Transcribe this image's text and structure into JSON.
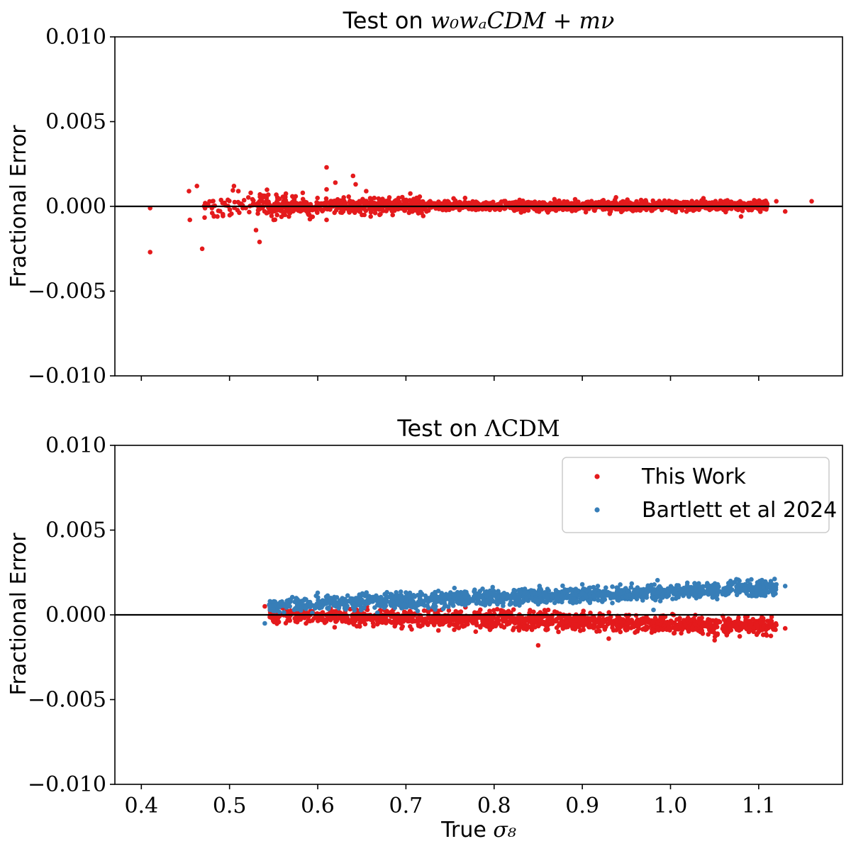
{
  "colors": {
    "red": "#e41a1c",
    "blue": "#377eb8",
    "zero_line": "#000000"
  },
  "chart_data": [
    {
      "type": "scatter",
      "title": "Test on w0waCDM + mν",
      "title_prefix": "Test on ",
      "title_math": "w₀wₐCDM + mν",
      "ylabel": "Fractional Error",
      "xlabel": "",
      "xlim": [
        0.37,
        1.195
      ],
      "ylim": [
        -0.01,
        0.01
      ],
      "yticks": [
        0.01,
        0.005,
        0.0,
        -0.005,
        -0.01
      ],
      "ytick_labels": [
        "0.010",
        "0.005",
        "0.000",
        "−0.005",
        "−0.010"
      ],
      "xticks": [
        0.4,
        0.5,
        0.6,
        0.7,
        0.8,
        0.9,
        1.0,
        1.1
      ],
      "xtick_labels": [],
      "zero_line": 0.0,
      "series": [
        {
          "name": "This Work",
          "color": "#e41a1c",
          "x_range": [
            0.41,
            1.16
          ],
          "sample_points": [
            [
              0.41,
              -0.0027
            ],
            [
              0.41,
              -0.0001
            ],
            [
              0.454,
              0.0009
            ],
            [
              0.455,
              -0.0008
            ],
            [
              0.463,
              0.0012
            ],
            [
              0.469,
              -0.0025
            ],
            [
              0.48,
              -0.0001
            ],
            [
              0.505,
              0.0012
            ],
            [
              0.51,
              0.0009
            ],
            [
              0.515,
              -0.0001
            ],
            [
              0.524,
              0.0008
            ],
            [
              0.53,
              -0.0014
            ],
            [
              0.534,
              -0.0021
            ],
            [
              0.55,
              -0.0008
            ],
            [
              0.583,
              0.0008
            ],
            [
              0.61,
              0.001
            ],
            [
              0.61,
              -0.0008
            ],
            [
              0.61,
              0.0023
            ],
            [
              0.62,
              0.0014
            ],
            [
              0.64,
              0.0018
            ],
            [
              0.643,
              0.0013
            ],
            [
              0.655,
              0.0009
            ],
            [
              0.66,
              -0.0006
            ],
            [
              1.1,
              0.0003
            ],
            [
              1.16,
              0.0003
            ],
            [
              1.13,
              -0.0003
            ],
            [
              1.08,
              -0.0006
            ],
            [
              1.12,
              0.0003
            ]
          ]
        }
      ]
    },
    {
      "type": "scatter",
      "title": "Test on ΛCDM",
      "title_prefix": "Test on ",
      "title_math": "ΛCDM",
      "ylabel": "Fractional Error",
      "xlabel": "True σ8",
      "xlabel_text": "True ",
      "xlabel_math": "σ₈",
      "xlim": [
        0.37,
        1.195
      ],
      "ylim": [
        -0.01,
        0.01
      ],
      "yticks": [
        0.01,
        0.005,
        0.0,
        -0.005,
        -0.01
      ],
      "ytick_labels": [
        "0.010",
        "0.005",
        "0.000",
        "−0.005",
        "−0.010"
      ],
      "xticks": [
        0.4,
        0.5,
        0.6,
        0.7,
        0.8,
        0.9,
        1.0,
        1.1
      ],
      "xtick_labels": [
        "0.4",
        "0.5",
        "0.6",
        "0.7",
        "0.8",
        "0.9",
        "1.0",
        "1.1"
      ],
      "zero_line": 0.0,
      "legend_position": "top-right",
      "series": [
        {
          "name": "This Work",
          "color": "#e41a1c",
          "x_range": [
            0.54,
            1.13
          ],
          "trend": {
            "slope": -0.00122,
            "intercept": 0.00066
          },
          "sample_points": [
            [
              0.54,
              0.0005
            ],
            [
              0.85,
              -0.0018
            ],
            [
              1.05,
              -0.0015
            ],
            [
              1.13,
              -0.0008
            ],
            [
              1.12,
              -0.0006
            ],
            [
              0.93,
              -0.0014
            ]
          ]
        },
        {
          "name": "Bartlett et al 2024",
          "color": "#377eb8",
          "x_range": [
            0.54,
            1.13
          ],
          "trend": {
            "slope": 0.0018,
            "intercept": -0.00042
          },
          "sample_points": [
            [
              0.54,
              -0.0005
            ],
            [
              0.545,
              0.0006
            ],
            [
              0.6,
              0.0013
            ],
            [
              0.9,
              0.0018
            ],
            [
              1.12,
              0.0018
            ],
            [
              1.13,
              0.0017
            ]
          ]
        }
      ]
    }
  ]
}
